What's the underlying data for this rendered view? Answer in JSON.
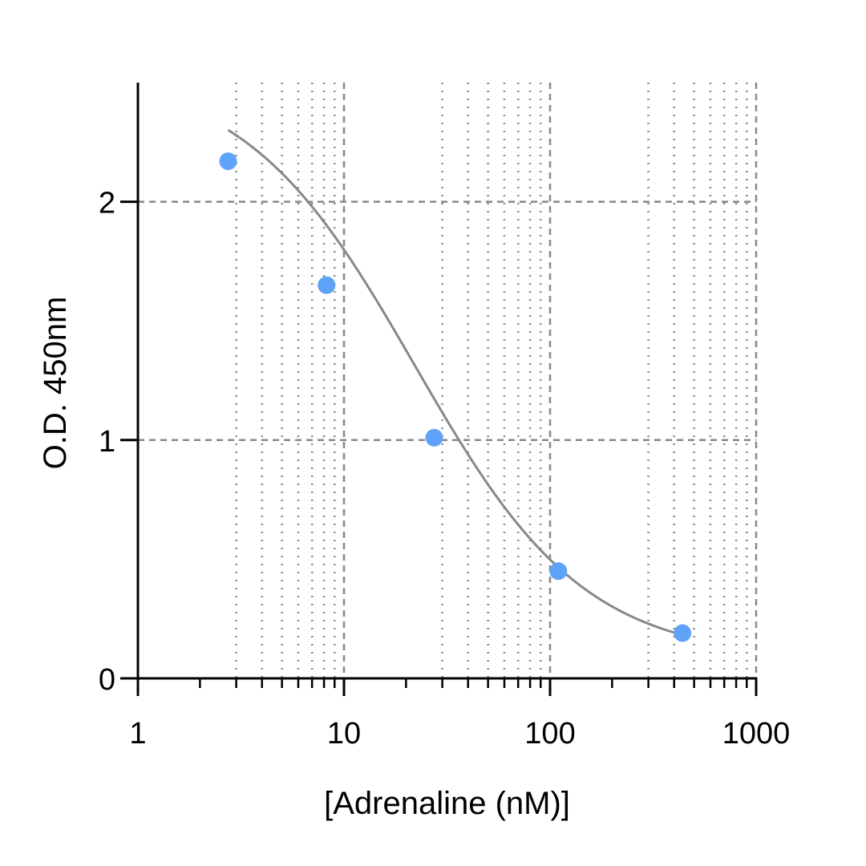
{
  "chart_data": {
    "type": "scatter",
    "title": "",
    "xlabel": "[Adrenaline (nM)]",
    "ylabel": "O.D. 450nm",
    "x_scale": "log",
    "xlim": [
      1,
      1000
    ],
    "ylim": [
      0,
      2.5
    ],
    "x_ticks": [
      1,
      10,
      100,
      1000
    ],
    "x_tick_labels": [
      "1",
      "10",
      "100",
      "1000"
    ],
    "y_ticks": [
      0,
      1,
      2
    ],
    "y_tick_labels": [
      "0",
      "1",
      "2"
    ],
    "grid": true,
    "legend": "none",
    "series": [
      {
        "x": [
          2.74,
          8.23,
          27.4,
          109.7,
          439
        ],
        "y": [
          2.17,
          1.65,
          1.01,
          0.45,
          0.19
        ],
        "marker_color": "#5ea3f7"
      }
    ],
    "fit_curve": {
      "model": "4PL",
      "bottom": 0.08,
      "top": 2.55,
      "ec50": 22,
      "hill": 1.05,
      "color": "#888888"
    },
    "grid_color": "#888888",
    "axis_color": "#000000"
  }
}
